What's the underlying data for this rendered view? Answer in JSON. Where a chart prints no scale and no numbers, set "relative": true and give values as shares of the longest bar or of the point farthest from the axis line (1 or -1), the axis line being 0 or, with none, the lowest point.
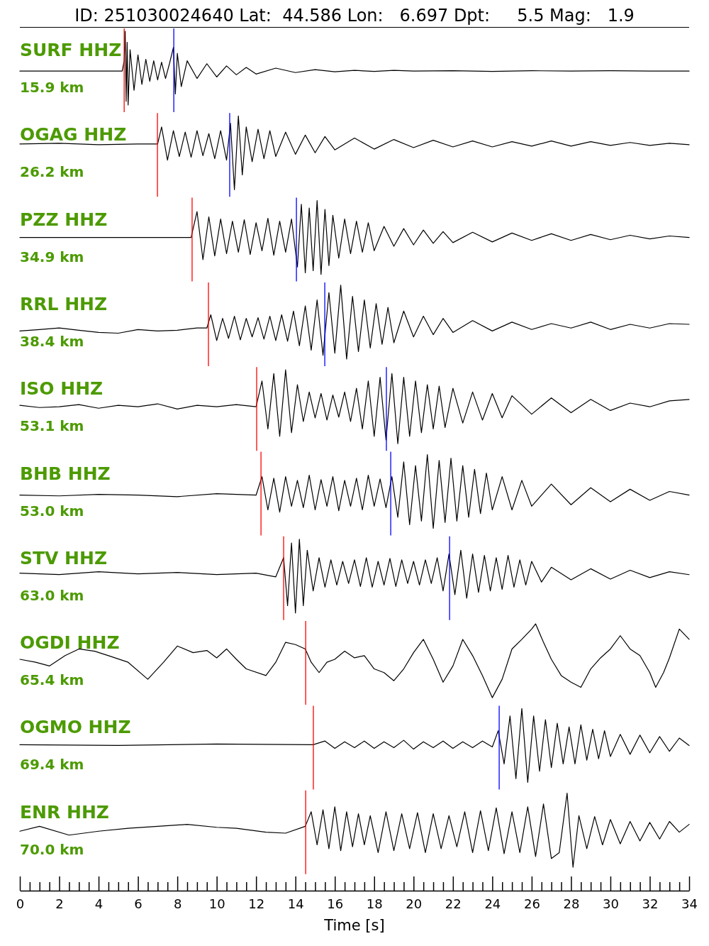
{
  "chart_data": [
    {
      "type": "line",
      "title": "ID: 251030024640 Lat:  44.586 Lon:   6.697 Dpt:     5.5 Mag:   1.9",
      "annotations": [
        "SURF HHZ",
        "15.9 km"
      ],
      "relative": true,
      "xlim": [
        0,
        34
      ],
      "tick_labels": false,
      "series": [
        {
          "color": "#000000",
          "x": [
            0,
            5.2,
            5.3,
            5.35,
            5.4,
            5.45,
            5.5,
            5.6,
            5.8,
            6.0,
            6.2,
            6.4,
            6.6,
            6.8,
            7.0,
            7.2,
            7.4,
            7.6,
            7.8,
            7.9,
            8.0,
            8.2,
            8.5,
            9,
            9.5,
            10,
            10.5,
            11,
            11.5,
            12,
            13,
            14,
            15,
            16,
            17,
            18,
            19,
            20,
            22,
            24,
            26,
            28,
            30,
            32,
            34
          ],
          "values": [
            0.46,
            0.46,
            0.6,
            1,
            0.05,
            0.85,
            0,
            0.75,
            0.2,
            0.68,
            0.28,
            0.62,
            0.32,
            0.6,
            0.34,
            0.58,
            0.36,
            0.56,
            0.78,
            0.15,
            0.7,
            0.25,
            0.6,
            0.36,
            0.56,
            0.38,
            0.53,
            0.41,
            0.51,
            0.42,
            0.5,
            0.44,
            0.48,
            0.45,
            0.47,
            0.455,
            0.47,
            0.46,
            0.465,
            0.455,
            0.465,
            0.46,
            0.465,
            0.46,
            0.46
          ]
        }
      ],
      "ref_lines": [
        {
          "axis": "x",
          "value": 5.3,
          "color": "#ff0000"
        },
        {
          "axis": "x",
          "value": 7.82,
          "color": "#0000ff"
        }
      ]
    },
    {
      "type": "line",
      "annotations": [
        "OGAG HHZ",
        "26.2 km"
      ],
      "relative": true,
      "xlim": [
        0,
        34
      ],
      "tick_labels": false,
      "series": [
        {
          "color": "#000000",
          "x": [
            0,
            2,
            4,
            6,
            7,
            7.2,
            7.5,
            7.8,
            8.1,
            8.4,
            8.7,
            9,
            9.3,
            9.6,
            9.9,
            10.2,
            10.5,
            10.7,
            10.9,
            11.1,
            11.3,
            11.5,
            11.8,
            12.1,
            12.4,
            12.7,
            13,
            13.5,
            14,
            14.5,
            15,
            15.5,
            16,
            17,
            18,
            19,
            20,
            21,
            22,
            23,
            24,
            25,
            26,
            27,
            28,
            29,
            30,
            31,
            32,
            33,
            34
          ],
          "values": [
            0.62,
            0.63,
            0.61,
            0.62,
            0.62,
            0.85,
            0.4,
            0.8,
            0.45,
            0.78,
            0.44,
            0.8,
            0.46,
            0.76,
            0.42,
            0.8,
            0.4,
            0.9,
            0,
            1,
            0.2,
            0.85,
            0.38,
            0.82,
            0.42,
            0.8,
            0.45,
            0.78,
            0.48,
            0.74,
            0.5,
            0.72,
            0.54,
            0.7,
            0.55,
            0.68,
            0.57,
            0.67,
            0.58,
            0.66,
            0.58,
            0.65,
            0.59,
            0.66,
            0.59,
            0.65,
            0.6,
            0.64,
            0.6,
            0.63,
            0.61
          ]
        }
      ],
      "ref_lines": [
        {
          "axis": "x",
          "value": 6.99,
          "color": "#ff0000"
        },
        {
          "axis": "x",
          "value": 10.66,
          "color": "#0000ff"
        }
      ]
    },
    {
      "type": "line",
      "annotations": [
        "PZZ HHZ",
        "34.9 km"
      ],
      "relative": true,
      "xlim": [
        0,
        34
      ],
      "tick_labels": false,
      "series": [
        {
          "color": "#000000",
          "x": [
            0,
            4,
            8.7,
            9.0,
            9.3,
            9.6,
            9.9,
            10.2,
            10.5,
            10.8,
            11.1,
            11.4,
            11.7,
            12,
            12.3,
            12.6,
            12.9,
            13.2,
            13.5,
            13.8,
            14.1,
            14.3,
            14.5,
            14.7,
            14.9,
            15.1,
            15.3,
            15.5,
            15.7,
            15.9,
            16.2,
            16.5,
            16.8,
            17.1,
            17.4,
            17.7,
            18,
            18.5,
            19,
            19.5,
            20,
            20.5,
            21,
            21.5,
            22,
            23,
            24,
            25,
            26,
            27,
            28,
            29,
            30,
            31,
            32,
            33,
            34
          ],
          "values": [
            0.5,
            0.5,
            0.5,
            0.85,
            0.2,
            0.78,
            0.25,
            0.75,
            0.28,
            0.72,
            0.3,
            0.74,
            0.27,
            0.7,
            0.32,
            0.76,
            0.26,
            0.72,
            0.3,
            0.75,
            0.1,
            0.95,
            0.02,
            0.9,
            0.05,
            1,
            0.0,
            0.88,
            0.12,
            0.8,
            0.22,
            0.75,
            0.28,
            0.72,
            0.3,
            0.7,
            0.32,
            0.65,
            0.38,
            0.62,
            0.4,
            0.6,
            0.42,
            0.58,
            0.43,
            0.57,
            0.44,
            0.56,
            0.46,
            0.55,
            0.46,
            0.54,
            0.47,
            0.53,
            0.48,
            0.52,
            0.5
          ]
        }
      ],
      "ref_lines": [
        {
          "axis": "x",
          "value": 8.75,
          "color": "#ff0000"
        },
        {
          "axis": "x",
          "value": 14.05,
          "color": "#0000ff"
        }
      ]
    },
    {
      "type": "line",
      "annotations": [
        "RRL HHZ",
        "38.4 km"
      ],
      "relative": true,
      "xlim": [
        0,
        34
      ],
      "tick_labels": false,
      "series": [
        {
          "color": "#000000",
          "x": [
            0,
            1,
            2,
            3,
            4,
            5,
            6,
            7,
            8,
            9,
            9.5,
            9.7,
            10,
            10.3,
            10.6,
            10.9,
            11.2,
            11.5,
            11.8,
            12.1,
            12.4,
            12.7,
            13,
            13.3,
            13.6,
            13.9,
            14.2,
            14.5,
            14.8,
            15.1,
            15.4,
            15.7,
            16,
            16.3,
            16.6,
            16.9,
            17.2,
            17.5,
            17.8,
            18.1,
            18.4,
            18.7,
            19,
            19.5,
            20,
            20.5,
            21,
            21.5,
            22,
            23,
            24,
            25,
            26,
            27,
            28,
            29,
            30,
            31,
            32,
            33,
            34
          ],
          "values": [
            0.38,
            0.4,
            0.42,
            0.39,
            0.36,
            0.35,
            0.4,
            0.38,
            0.39,
            0.42,
            0.42,
            0.6,
            0.25,
            0.55,
            0.28,
            0.58,
            0.26,
            0.55,
            0.3,
            0.56,
            0.27,
            0.58,
            0.25,
            0.6,
            0.24,
            0.65,
            0.18,
            0.72,
            0.12,
            0.8,
            0.05,
            0.9,
            0.08,
            1.0,
            0,
            0.85,
            0.1,
            0.8,
            0.15,
            0.75,
            0.2,
            0.7,
            0.22,
            0.65,
            0.3,
            0.58,
            0.33,
            0.55,
            0.36,
            0.52,
            0.38,
            0.5,
            0.4,
            0.48,
            0.42,
            0.5,
            0.4,
            0.47,
            0.42,
            0.48,
            0.47
          ]
        }
      ],
      "ref_lines": [
        {
          "axis": "x",
          "value": 9.58,
          "color": "#ff0000"
        },
        {
          "axis": "x",
          "value": 15.49,
          "color": "#0000ff"
        }
      ]
    },
    {
      "type": "line",
      "annotations": [
        "ISO HHZ",
        "53.1 km"
      ],
      "relative": true,
      "xlim": [
        0,
        34
      ],
      "tick_labels": false,
      "series": [
        {
          "color": "#000000",
          "x": [
            0,
            1,
            2,
            3,
            4,
            5,
            6,
            7,
            8,
            9,
            10,
            11,
            12,
            12.3,
            12.6,
            12.9,
            13.2,
            13.5,
            13.8,
            14.1,
            14.4,
            14.7,
            15,
            15.3,
            15.6,
            15.9,
            16.2,
            16.5,
            16.8,
            17.1,
            17.4,
            17.7,
            18,
            18.3,
            18.6,
            18.9,
            19.2,
            19.5,
            19.8,
            20.1,
            20.4,
            20.7,
            21,
            21.3,
            21.6,
            22,
            22.5,
            23,
            23.5,
            24,
            24.5,
            25,
            26,
            27,
            28,
            29,
            30,
            31,
            32,
            33,
            34
          ],
          "values": [
            0.52,
            0.49,
            0.5,
            0.53,
            0.48,
            0.52,
            0.5,
            0.54,
            0.47,
            0.52,
            0.5,
            0.53,
            0.5,
            0.85,
            0.2,
            0.95,
            0.1,
            1.0,
            0.15,
            0.8,
            0.3,
            0.7,
            0.35,
            0.68,
            0.32,
            0.66,
            0.36,
            0.7,
            0.3,
            0.75,
            0.2,
            0.85,
            0.1,
            0.9,
            0.05,
            0.95,
            0.0,
            0.9,
            0.1,
            0.85,
            0.15,
            0.8,
            0.2,
            0.78,
            0.22,
            0.75,
            0.28,
            0.7,
            0.32,
            0.68,
            0.35,
            0.65,
            0.4,
            0.62,
            0.42,
            0.6,
            0.45,
            0.55,
            0.5,
            0.58,
            0.6
          ]
        }
      ],
      "ref_lines": [
        {
          "axis": "x",
          "value": 12.03,
          "color": "#ff0000"
        },
        {
          "axis": "x",
          "value": 18.62,
          "color": "#0000ff"
        }
      ]
    },
    {
      "type": "line",
      "annotations": [
        "BHB HHZ",
        "53.0 km"
      ],
      "relative": true,
      "xlim": [
        0,
        34
      ],
      "tick_labels": false,
      "series": [
        {
          "color": "#000000",
          "x": [
            0,
            2,
            4,
            6,
            8,
            10,
            12,
            12.3,
            12.6,
            12.9,
            13.2,
            13.5,
            13.8,
            14.1,
            14.4,
            14.7,
            15,
            15.3,
            15.6,
            15.9,
            16.2,
            16.5,
            16.8,
            17.1,
            17.4,
            17.7,
            18,
            18.3,
            18.6,
            18.9,
            19.2,
            19.5,
            19.8,
            20.1,
            20.4,
            20.7,
            21,
            21.3,
            21.6,
            21.9,
            22.2,
            22.5,
            22.8,
            23.1,
            23.4,
            23.7,
            24,
            24.5,
            25,
            25.5,
            26,
            27,
            28,
            29,
            30,
            31,
            32,
            33,
            34
          ],
          "values": [
            0.45,
            0.44,
            0.46,
            0.45,
            0.43,
            0.47,
            0.45,
            0.7,
            0.25,
            0.68,
            0.22,
            0.7,
            0.3,
            0.65,
            0.28,
            0.72,
            0.25,
            0.66,
            0.3,
            0.7,
            0.24,
            0.65,
            0.3,
            0.68,
            0.25,
            0.72,
            0.3,
            0.67,
            0.28,
            0.7,
            0.15,
            0.9,
            0.05,
            0.85,
            0.1,
            1.0,
            0.0,
            0.92,
            0.08,
            0.95,
            0.1,
            0.85,
            0.15,
            0.8,
            0.2,
            0.75,
            0.25,
            0.7,
            0.25,
            0.65,
            0.3,
            0.6,
            0.32,
            0.55,
            0.36,
            0.53,
            0.38,
            0.5,
            0.45
          ]
        }
      ],
      "ref_lines": [
        {
          "axis": "x",
          "value": 12.25,
          "color": "#ff0000"
        },
        {
          "axis": "x",
          "value": 18.84,
          "color": "#0000ff"
        }
      ]
    },
    {
      "type": "line",
      "annotations": [
        "STV HHZ",
        "63.0 km"
      ],
      "relative": true,
      "xlim": [
        0,
        34
      ],
      "tick_labels": false,
      "series": [
        {
          "color": "#000000",
          "x": [
            0,
            2,
            4,
            6,
            8,
            10,
            12,
            13,
            13.4,
            13.6,
            13.8,
            14,
            14.2,
            14.4,
            14.6,
            14.9,
            15.2,
            15.5,
            15.8,
            16.1,
            16.4,
            16.7,
            17,
            17.3,
            17.6,
            17.9,
            18.2,
            18.5,
            18.8,
            19.1,
            19.4,
            19.7,
            20,
            20.3,
            20.6,
            20.9,
            21.2,
            21.5,
            21.8,
            22.1,
            22.4,
            22.7,
            23,
            23.3,
            23.6,
            23.9,
            24.2,
            24.5,
            24.8,
            25.1,
            25.4,
            25.7,
            26,
            26.5,
            27,
            28,
            29,
            30,
            31,
            32,
            33,
            34
          ],
          "values": [
            0.54,
            0.52,
            0.56,
            0.53,
            0.55,
            0.52,
            0.54,
            0.49,
            0.75,
            0.1,
            0.95,
            0.0,
            1.0,
            0.1,
            0.85,
            0.3,
            0.75,
            0.35,
            0.72,
            0.38,
            0.7,
            0.4,
            0.72,
            0.36,
            0.75,
            0.35,
            0.7,
            0.38,
            0.74,
            0.36,
            0.72,
            0.4,
            0.7,
            0.38,
            0.72,
            0.4,
            0.75,
            0.3,
            0.8,
            0.25,
            0.85,
            0.2,
            0.8,
            0.28,
            0.78,
            0.3,
            0.75,
            0.32,
            0.78,
            0.35,
            0.72,
            0.38,
            0.7,
            0.42,
            0.62,
            0.45,
            0.6,
            0.46,
            0.58,
            0.48,
            0.56,
            0.52
          ]
        }
      ],
      "ref_lines": [
        {
          "axis": "x",
          "value": 13.4,
          "color": "#ff0000"
        },
        {
          "axis": "x",
          "value": 21.83,
          "color": "#0000ff"
        }
      ]
    },
    {
      "type": "line",
      "annotations": [
        "OGDI HHZ",
        "65.4 km"
      ],
      "relative": true,
      "xlim": [
        0,
        34
      ],
      "tick_labels": false,
      "series": [
        {
          "color": "#000000",
          "x": [
            0,
            0.8,
            1.5,
            2.3,
            3,
            3.8,
            4.5,
            5.5,
            6.5,
            7.3,
            8,
            8.8,
            9.5,
            10,
            10.5,
            11,
            11.5,
            12.5,
            13,
            13.5,
            14,
            14.5,
            14.8,
            15.2,
            15.6,
            16,
            16.5,
            17,
            17.5,
            18,
            18.5,
            19,
            19.5,
            20,
            20.5,
            21,
            21.5,
            22,
            22.5,
            23,
            23.5,
            24,
            24.5,
            25,
            25.5,
            26,
            26.2,
            26.6,
            27,
            27.5,
            28,
            28.5,
            29,
            29.5,
            30,
            30.5,
            31,
            31.5,
            32,
            32.3,
            32.7,
            33,
            33.5,
            34
          ],
          "values": [
            0.52,
            0.48,
            0.43,
            0.57,
            0.66,
            0.63,
            0.57,
            0.48,
            0.25,
            0.48,
            0.7,
            0.61,
            0.64,
            0.54,
            0.66,
            0.52,
            0.39,
            0.3,
            0.48,
            0.75,
            0.72,
            0.66,
            0.48,
            0.34,
            0.48,
            0.52,
            0.63,
            0.54,
            0.57,
            0.39,
            0.34,
            0.23,
            0.39,
            0.61,
            0.79,
            0.52,
            0.21,
            0.43,
            0.79,
            0.57,
            0.3,
            0,
            0.25,
            0.66,
            0.79,
            0.93,
            1,
            0.75,
            0.52,
            0.3,
            0.21,
            0.14,
            0.39,
            0.54,
            0.66,
            0.84,
            0.66,
            0.57,
            0.34,
            0.14,
            0.34,
            0.54,
            0.93,
            0.79
          ]
        }
      ],
      "ref_lines": [
        {
          "axis": "x",
          "value": 14.52,
          "color": "#ff0000"
        }
      ]
    },
    {
      "type": "line",
      "annotations": [
        "OGMO HHZ",
        "69.4 km"
      ],
      "relative": true,
      "xlim": [
        0,
        34
      ],
      "tick_labels": false,
      "series": [
        {
          "color": "#000000",
          "x": [
            0,
            5,
            10,
            14.9,
            15.5,
            16,
            16.5,
            17,
            17.5,
            18,
            18.5,
            19,
            19.5,
            20,
            20.5,
            21,
            21.5,
            22,
            22.5,
            23,
            23.5,
            24,
            24.3,
            24.6,
            24.9,
            25.2,
            25.5,
            25.8,
            26.1,
            26.4,
            26.7,
            27,
            27.3,
            27.6,
            27.9,
            28.2,
            28.5,
            28.8,
            29.1,
            29.4,
            29.7,
            30,
            30.5,
            31,
            31.5,
            32,
            32.5,
            33,
            33.5,
            34
          ],
          "values": [
            0.51,
            0.5,
            0.52,
            0.51,
            0.56,
            0.46,
            0.55,
            0.47,
            0.56,
            0.46,
            0.55,
            0.47,
            0.57,
            0.45,
            0.55,
            0.47,
            0.56,
            0.46,
            0.55,
            0.47,
            0.56,
            0.48,
            0.7,
            0.25,
            0.9,
            0.05,
            1.0,
            0.0,
            0.9,
            0.15,
            0.85,
            0.2,
            0.8,
            0.25,
            0.75,
            0.25,
            0.78,
            0.3,
            0.72,
            0.32,
            0.7,
            0.35,
            0.65,
            0.38,
            0.64,
            0.4,
            0.62,
            0.42,
            0.6,
            0.5
          ]
        }
      ],
      "ref_lines": [
        {
          "axis": "x",
          "value": 14.91,
          "color": "#ff0000"
        },
        {
          "axis": "x",
          "value": 24.35,
          "color": "#0000ff"
        }
      ]
    },
    {
      "type": "line",
      "annotations": [
        "ENR HHZ",
        "70.0 km"
      ],
      "relative": true,
      "xlim": [
        0,
        34
      ],
      "xlabel": "Time [s]",
      "tick_labels": "x",
      "xticks": [
        0,
        {
          "value": 0.5,
          "label": null
        },
        {
          "value": 1,
          "label": null
        },
        {
          "value": 1.5,
          "label": null
        },
        2,
        {
          "value": 2.5,
          "label": null
        },
        {
          "value": 3,
          "label": null
        },
        {
          "value": 3.5,
          "label": null
        },
        4,
        {
          "value": 4.5,
          "label": null
        },
        {
          "value": 5,
          "label": null
        },
        {
          "value": 5.5,
          "label": null
        },
        6,
        {
          "value": 6.5,
          "label": null
        },
        {
          "value": 7,
          "label": null
        },
        {
          "value": 7.5,
          "label": null
        },
        8,
        {
          "value": 8.5,
          "label": null
        },
        {
          "value": 9,
          "label": null
        },
        {
          "value": 9.5,
          "label": null
        },
        10,
        {
          "value": 10.5,
          "label": null
        },
        {
          "value": 11,
          "label": null
        },
        {
          "value": 11.5,
          "label": null
        },
        12,
        {
          "value": 12.5,
          "label": null
        },
        {
          "value": 13,
          "label": null
        },
        {
          "value": 13.5,
          "label": null
        },
        14,
        {
          "value": 14.5,
          "label": null
        },
        {
          "value": 15,
          "label": null
        },
        {
          "value": 15.5,
          "label": null
        },
        16,
        {
          "value": 16.5,
          "label": null
        },
        {
          "value": 17,
          "label": null
        },
        {
          "value": 17.5,
          "label": null
        },
        18,
        {
          "value": 18.5,
          "label": null
        },
        {
          "value": 19,
          "label": null
        },
        {
          "value": 19.5,
          "label": null
        },
        20,
        {
          "value": 20.5,
          "label": null
        },
        {
          "value": 21,
          "label": null
        },
        {
          "value": 21.5,
          "label": null
        },
        22,
        {
          "value": 22.5,
          "label": null
        },
        {
          "value": 23,
          "label": null
        },
        {
          "value": 23.5,
          "label": null
        },
        24,
        {
          "value": 24.5,
          "label": null
        },
        {
          "value": 25,
          "label": null
        },
        {
          "value": 25.5,
          "label": null
        },
        26,
        {
          "value": 26.5,
          "label": null
        },
        {
          "value": 27,
          "label": null
        },
        {
          "value": 27.5,
          "label": null
        },
        28,
        {
          "value": 28.5,
          "label": null
        },
        {
          "value": 29,
          "label": null
        },
        {
          "value": 29.5,
          "label": null
        },
        30,
        {
          "value": 30.5,
          "label": null
        },
        {
          "value": 31,
          "label": null
        },
        {
          "value": 31.5,
          "label": null
        },
        32,
        {
          "value": 32.5,
          "label": null
        },
        {
          "value": 33,
          "label": null
        },
        {
          "value": 33.5,
          "label": null
        },
        34
      ],
      "series": [
        {
          "color": "#000000",
          "x": [
            0,
            1,
            2.5,
            4,
            5.5,
            7,
            8.5,
            10,
            11,
            12.5,
            13.5,
            14.5,
            14.8,
            15.1,
            15.4,
            15.7,
            16,
            16.3,
            16.6,
            16.9,
            17.2,
            17.5,
            17.8,
            18.2,
            18.6,
            19,
            19.4,
            19.8,
            20.2,
            20.6,
            21,
            21.4,
            21.8,
            22.2,
            22.6,
            23,
            23.4,
            23.8,
            24.2,
            24.6,
            25,
            25.4,
            25.8,
            26.2,
            26.6,
            27,
            27.4,
            27.8,
            28.1,
            28.4,
            28.8,
            29.2,
            29.6,
            30,
            30.5,
            31,
            31.5,
            32,
            32.5,
            33,
            33.5,
            34
          ],
          "values": [
            0.61,
            0.66,
            0.57,
            0.61,
            0.64,
            0.66,
            0.68,
            0.65,
            0.64,
            0.6,
            0.59,
            0.66,
            0.81,
            0.47,
            0.83,
            0.43,
            0.86,
            0.41,
            0.81,
            0.45,
            0.79,
            0.47,
            0.77,
            0.39,
            0.81,
            0.41,
            0.79,
            0.43,
            0.8,
            0.39,
            0.79,
            0.43,
            0.77,
            0.45,
            0.81,
            0.39,
            0.82,
            0.41,
            0.85,
            0.38,
            0.81,
            0.39,
            0.86,
            0.35,
            0.89,
            0.33,
            0.39,
            1.0,
            0.24,
            0.77,
            0.43,
            0.76,
            0.47,
            0.73,
            0.48,
            0.71,
            0.51,
            0.7,
            0.53,
            0.71,
            0.6,
            0.68
          ]
        }
      ],
      "ref_lines": [
        {
          "axis": "x",
          "value": 14.52,
          "color": "#ff0000"
        }
      ]
    }
  ]
}
